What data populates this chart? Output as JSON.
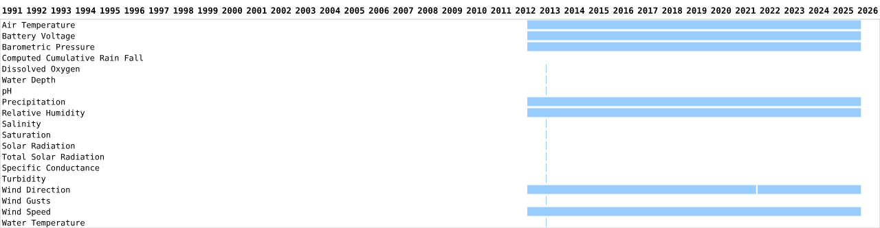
{
  "chart_data": {
    "type": "bar",
    "orientation": "horizontal",
    "categories": [
      "Air Temperature",
      "Battery Voltage",
      "Barometric Pressure",
      "Computed Cumulative Rain Fall",
      "Dissolved Oxygen",
      "Water Depth",
      "pH",
      "Precipitation",
      "Relative Humidity",
      "Salinity",
      "Saturation",
      "Solar Radiation",
      "Total Solar Radiation",
      "Specific Conductance",
      "Turbidity",
      "Wind Direction",
      "Wind Gusts",
      "Wind Speed",
      "Water Temperature"
    ],
    "series": [
      {
        "color": "#99ccff",
        "base": [
          2012.57,
          2012.57,
          2012.57,
          null,
          2013.33,
          2013.33,
          2013.33,
          2012.57,
          2012.57,
          2013.33,
          2013.33,
          2013.33,
          2013.33,
          2013.33,
          2013.33,
          2012.57,
          2013.33,
          2012.57,
          2013.33
        ],
        "values": [
          13.65,
          13.65,
          13.65,
          null,
          0.03,
          0.03,
          0.03,
          13.65,
          13.65,
          0.03,
          0.03,
          0.03,
          0.03,
          0.03,
          0.03,
          9.36,
          0.03,
          13.65,
          0.03
        ]
      },
      {
        "color": "#99ccff",
        "base": [
          null,
          null,
          null,
          null,
          null,
          null,
          null,
          null,
          null,
          null,
          null,
          null,
          null,
          null,
          null,
          2021.99,
          null,
          null,
          null
        ],
        "values": [
          null,
          null,
          null,
          null,
          null,
          null,
          null,
          null,
          null,
          null,
          null,
          null,
          null,
          null,
          null,
          4.23,
          null,
          null,
          null
        ]
      }
    ],
    "xlim": [
      1991,
      2027
    ],
    "xticks": [
      {
        "value": 1991.5,
        "label": "1991"
      },
      {
        "value": 1992.5,
        "label": "1992"
      },
      {
        "value": 1993.5,
        "label": "1993"
      },
      {
        "value": 1994.5,
        "label": "1994"
      },
      {
        "value": 1995.5,
        "label": "1995"
      },
      {
        "value": 1996.5,
        "label": "1996"
      },
      {
        "value": 1997.5,
        "label": "1997"
      },
      {
        "value": 1998.5,
        "label": "1998"
      },
      {
        "value": 1999.5,
        "label": "1999"
      },
      {
        "value": 2000.5,
        "label": "2000"
      },
      {
        "value": 2001.5,
        "label": "2001"
      },
      {
        "value": 2002.5,
        "label": "2002"
      },
      {
        "value": 2003.5,
        "label": "2003"
      },
      {
        "value": 2004.5,
        "label": "2004"
      },
      {
        "value": 2005.5,
        "label": "2005"
      },
      {
        "value": 2006.5,
        "label": "2006"
      },
      {
        "value": 2007.5,
        "label": "2007"
      },
      {
        "value": 2008.5,
        "label": "2008"
      },
      {
        "value": 2009.5,
        "label": "2009"
      },
      {
        "value": 2010.5,
        "label": "2010"
      },
      {
        "value": 2011.5,
        "label": "2011"
      },
      {
        "value": 2012.5,
        "label": "2012"
      },
      {
        "value": 2013.5,
        "label": "2013"
      },
      {
        "value": 2014.5,
        "label": "2014"
      },
      {
        "value": 2015.5,
        "label": "2015"
      },
      {
        "value": 2016.5,
        "label": "2016"
      },
      {
        "value": 2017.5,
        "label": "2017"
      },
      {
        "value": 2018.5,
        "label": "2018"
      },
      {
        "value": 2019.5,
        "label": "2019"
      },
      {
        "value": 2020.5,
        "label": "2020"
      },
      {
        "value": 2021.5,
        "label": "2021"
      },
      {
        "value": 2022.5,
        "label": "2022"
      },
      {
        "value": 2023.5,
        "label": "2023"
      },
      {
        "value": 2024.5,
        "label": "2024"
      },
      {
        "value": 2025.5,
        "label": "2025"
      },
      {
        "value": 2026.5,
        "label": "2026"
      }
    ],
    "grid": false
  }
}
